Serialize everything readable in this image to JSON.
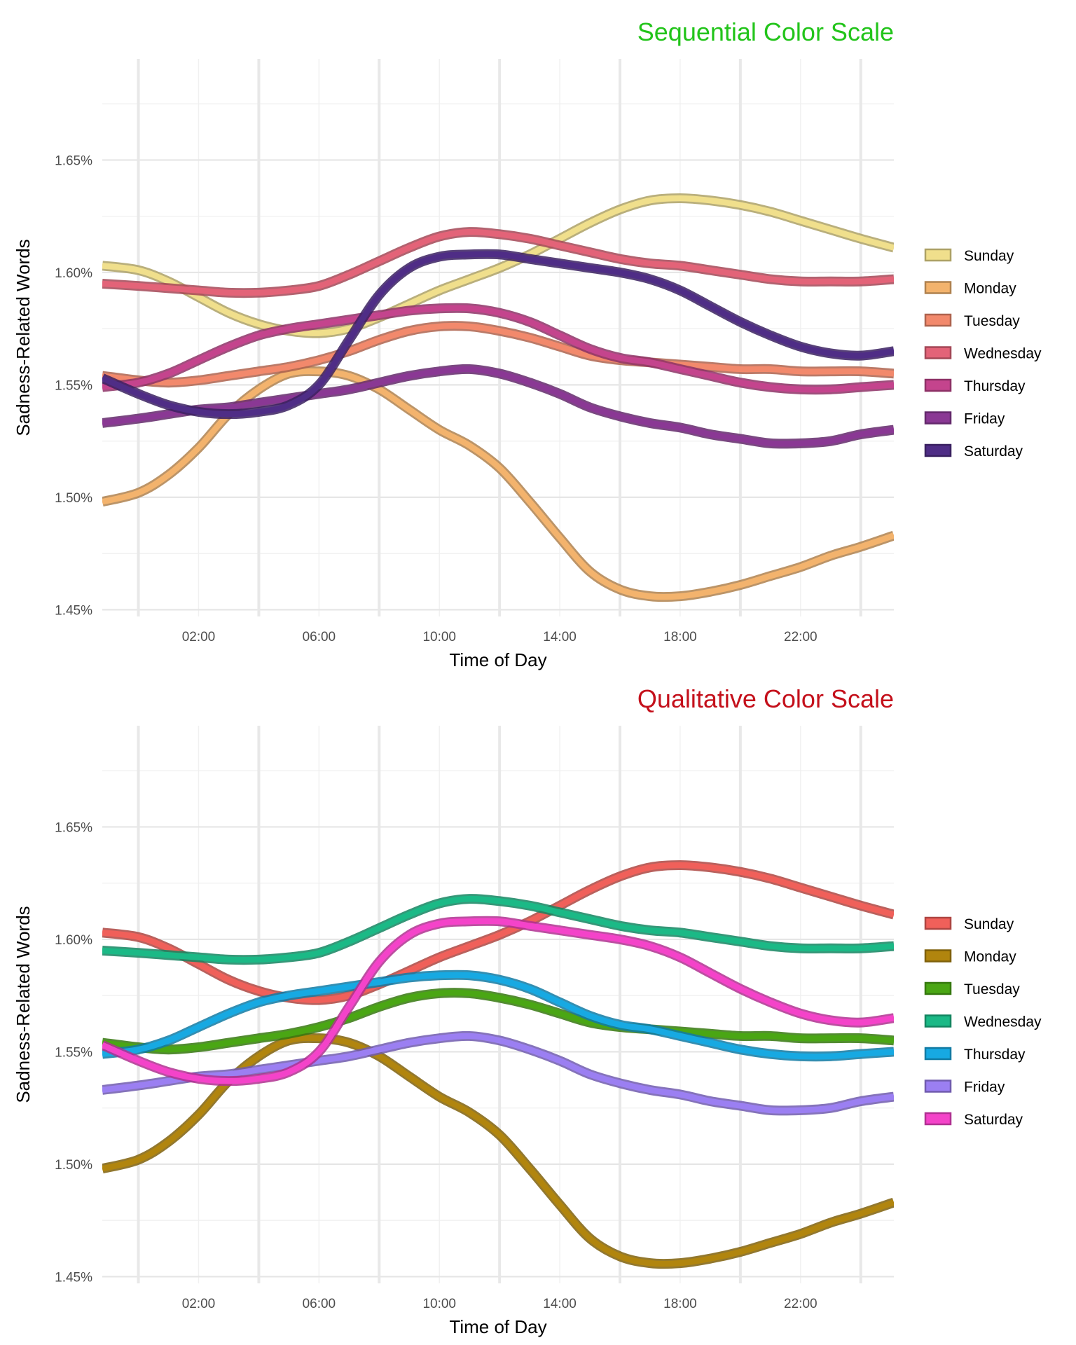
{
  "chart_data": [
    {
      "type": "line",
      "title": "Sequential Color Scale",
      "title_color": "#22c41a",
      "xlabel": "Time of Day",
      "ylabel": "Sadness-Related Words",
      "x_tick_labels": [
        "02:00",
        "06:00",
        "10:00",
        "14:00",
        "18:00",
        "22:00"
      ],
      "y_tick_labels": [
        "1.45%",
        "1.50%",
        "1.55%",
        "1.60%",
        "1.65%"
      ],
      "ylim": [
        1.447,
        1.695
      ],
      "xlim": [
        -1.2,
        25.1
      ],
      "legend_position": "right",
      "grid": true,
      "x_hours": [
        -1.2,
        0,
        1,
        2,
        3,
        4,
        5,
        6,
        7,
        8,
        9,
        10,
        11,
        12,
        13,
        14,
        15,
        16,
        17,
        18,
        19,
        20,
        21,
        22,
        23,
        24,
        25.1
      ],
      "series": [
        {
          "name": "Sunday",
          "color": "#f0df8c",
          "values": [
            1.603,
            1.601,
            1.596,
            1.589,
            1.582,
            1.577,
            1.574,
            1.573,
            1.575,
            1.58,
            1.586,
            1.592,
            1.597,
            1.602,
            1.608,
            1.615,
            1.622,
            1.628,
            1.632,
            1.633,
            1.632,
            1.63,
            1.627,
            1.623,
            1.619,
            1.615,
            1.611
          ]
        },
        {
          "name": "Monday",
          "color": "#f3b36d",
          "values": [
            1.498,
            1.502,
            1.51,
            1.522,
            1.537,
            1.548,
            1.555,
            1.556,
            1.554,
            1.548,
            1.539,
            1.53,
            1.523,
            1.513,
            1.498,
            1.482,
            1.467,
            1.459,
            1.456,
            1.456,
            1.458,
            1.461,
            1.465,
            1.469,
            1.474,
            1.478,
            1.483
          ]
        },
        {
          "name": "Tuesday",
          "color": "#f2896c",
          "values": [
            1.554,
            1.552,
            1.551,
            1.552,
            1.554,
            1.556,
            1.558,
            1.561,
            1.565,
            1.57,
            1.574,
            1.576,
            1.576,
            1.574,
            1.571,
            1.567,
            1.563,
            1.561,
            1.56,
            1.559,
            1.558,
            1.557,
            1.557,
            1.556,
            1.556,
            1.556,
            1.555
          ]
        },
        {
          "name": "Wednesday",
          "color": "#e36378",
          "values": [
            1.595,
            1.594,
            1.593,
            1.592,
            1.591,
            1.591,
            1.592,
            1.594,
            1.599,
            1.605,
            1.611,
            1.616,
            1.618,
            1.617,
            1.615,
            1.612,
            1.609,
            1.606,
            1.604,
            1.603,
            1.601,
            1.599,
            1.597,
            1.596,
            1.596,
            1.596,
            1.597
          ]
        },
        {
          "name": "Thursday",
          "color": "#c4448d",
          "values": [
            1.549,
            1.551,
            1.555,
            1.561,
            1.567,
            1.572,
            1.575,
            1.577,
            1.579,
            1.581,
            1.583,
            1.584,
            1.584,
            1.582,
            1.578,
            1.572,
            1.566,
            1.562,
            1.56,
            1.557,
            1.554,
            1.551,
            1.549,
            1.548,
            1.548,
            1.549,
            1.55
          ]
        },
        {
          "name": "Friday",
          "color": "#8a3894",
          "values": [
            1.533,
            1.535,
            1.537,
            1.539,
            1.54,
            1.542,
            1.544,
            1.546,
            1.548,
            1.551,
            1.554,
            1.556,
            1.557,
            1.555,
            1.551,
            1.546,
            1.54,
            1.536,
            1.533,
            1.531,
            1.528,
            1.526,
            1.524,
            1.524,
            1.525,
            1.528,
            1.53
          ]
        },
        {
          "name": "Saturday",
          "color": "#4f2d86",
          "values": [
            1.553,
            1.546,
            1.541,
            1.538,
            1.537,
            1.538,
            1.541,
            1.55,
            1.57,
            1.59,
            1.602,
            1.607,
            1.608,
            1.608,
            1.606,
            1.604,
            1.602,
            1.6,
            1.597,
            1.592,
            1.585,
            1.578,
            1.572,
            1.567,
            1.564,
            1.563,
            1.565
          ]
        }
      ]
    },
    {
      "type": "line",
      "title": "Qualitative Color Scale",
      "title_color": "#c4101b",
      "xlabel": "Time of Day",
      "ylabel": "Sadness-Related Words",
      "x_tick_labels": [
        "02:00",
        "06:00",
        "10:00",
        "14:00",
        "18:00",
        "22:00"
      ],
      "y_tick_labels": [
        "1.45%",
        "1.50%",
        "1.55%",
        "1.60%",
        "1.65%"
      ],
      "ylim": [
        1.447,
        1.695
      ],
      "xlim": [
        -1.2,
        25.1
      ],
      "legend_position": "right",
      "grid": true,
      "x_hours": [
        -1.2,
        0,
        1,
        2,
        3,
        4,
        5,
        6,
        7,
        8,
        9,
        10,
        11,
        12,
        13,
        14,
        15,
        16,
        17,
        18,
        19,
        20,
        21,
        22,
        23,
        24,
        25.1
      ],
      "series": [
        {
          "name": "Sunday",
          "color": "#f0605a",
          "values": [
            1.603,
            1.601,
            1.596,
            1.589,
            1.582,
            1.577,
            1.574,
            1.573,
            1.575,
            1.58,
            1.586,
            1.592,
            1.597,
            1.602,
            1.608,
            1.615,
            1.622,
            1.628,
            1.632,
            1.633,
            1.632,
            1.63,
            1.627,
            1.623,
            1.619,
            1.615,
            1.611
          ]
        },
        {
          "name": "Monday",
          "color": "#b1850e",
          "values": [
            1.498,
            1.502,
            1.51,
            1.522,
            1.537,
            1.548,
            1.555,
            1.556,
            1.554,
            1.548,
            1.539,
            1.53,
            1.523,
            1.513,
            1.498,
            1.482,
            1.467,
            1.459,
            1.456,
            1.456,
            1.458,
            1.461,
            1.465,
            1.469,
            1.474,
            1.478,
            1.483
          ]
        },
        {
          "name": "Tuesday",
          "color": "#4aa614",
          "values": [
            1.554,
            1.552,
            1.551,
            1.552,
            1.554,
            1.556,
            1.558,
            1.561,
            1.565,
            1.57,
            1.574,
            1.576,
            1.576,
            1.574,
            1.571,
            1.567,
            1.563,
            1.561,
            1.56,
            1.559,
            1.558,
            1.557,
            1.557,
            1.556,
            1.556,
            1.556,
            1.555
          ]
        },
        {
          "name": "Wednesday",
          "color": "#1bb986",
          "values": [
            1.595,
            1.594,
            1.593,
            1.592,
            1.591,
            1.591,
            1.592,
            1.594,
            1.599,
            1.605,
            1.611,
            1.616,
            1.618,
            1.617,
            1.615,
            1.612,
            1.609,
            1.606,
            1.604,
            1.603,
            1.601,
            1.599,
            1.597,
            1.596,
            1.596,
            1.596,
            1.597
          ]
        },
        {
          "name": "Thursday",
          "color": "#17a9e2",
          "values": [
            1.549,
            1.551,
            1.555,
            1.561,
            1.567,
            1.572,
            1.575,
            1.577,
            1.579,
            1.581,
            1.583,
            1.584,
            1.584,
            1.582,
            1.578,
            1.572,
            1.566,
            1.562,
            1.56,
            1.557,
            1.554,
            1.551,
            1.549,
            1.548,
            1.548,
            1.549,
            1.55
          ]
        },
        {
          "name": "Friday",
          "color": "#9b7ff2",
          "values": [
            1.533,
            1.535,
            1.537,
            1.539,
            1.54,
            1.542,
            1.544,
            1.546,
            1.548,
            1.551,
            1.554,
            1.556,
            1.557,
            1.555,
            1.551,
            1.546,
            1.54,
            1.536,
            1.533,
            1.531,
            1.528,
            1.526,
            1.524,
            1.524,
            1.525,
            1.528,
            1.53
          ]
        },
        {
          "name": "Saturday",
          "color": "#f443c9",
          "values": [
            1.553,
            1.546,
            1.541,
            1.538,
            1.537,
            1.538,
            1.541,
            1.55,
            1.57,
            1.59,
            1.602,
            1.607,
            1.608,
            1.608,
            1.606,
            1.604,
            1.602,
            1.6,
            1.597,
            1.592,
            1.585,
            1.578,
            1.572,
            1.567,
            1.564,
            1.563,
            1.565
          ]
        }
      ]
    }
  ]
}
